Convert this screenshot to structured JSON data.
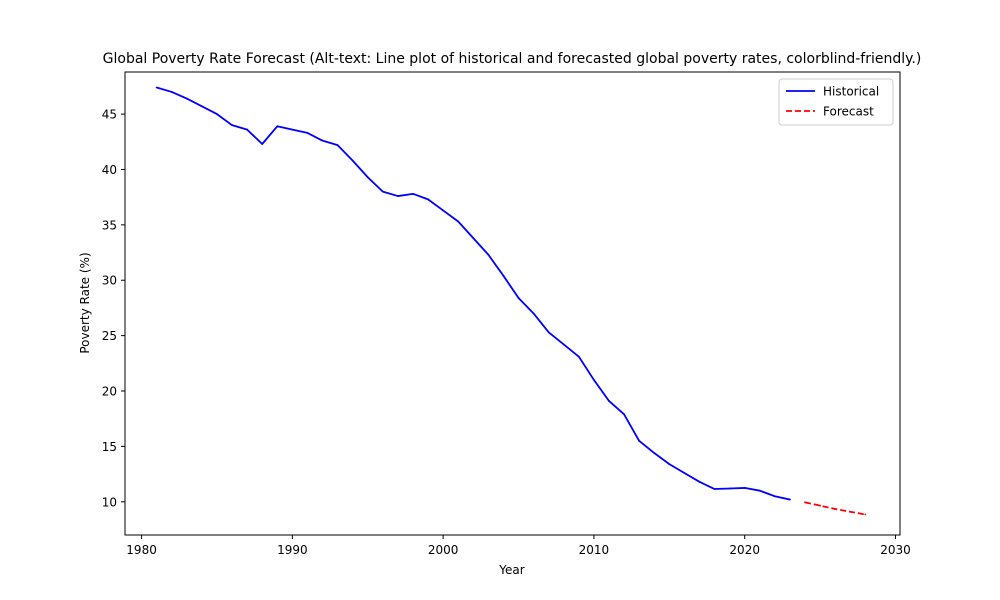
{
  "chart_data": {
    "type": "line",
    "title": "Global Poverty Rate Forecast (Alt-text: Line plot of historical and forecasted global poverty rates, colorblind-friendly.)",
    "xlabel": "Year",
    "ylabel": "Poverty Rate (%)",
    "xlim": [
      1978.9,
      2030.3
    ],
    "ylim": [
      7.0,
      48.8
    ],
    "xticks": [
      1980,
      1990,
      2000,
      2010,
      2020,
      2030
    ],
    "yticks": [
      10,
      15,
      20,
      25,
      30,
      35,
      40,
      45
    ],
    "grid": false,
    "legend_position": "top-right",
    "series": [
      {
        "name": "Historical",
        "color": "#0000ff",
        "style": "solid",
        "x": [
          1981,
          1982,
          1983,
          1984,
          1985,
          1986,
          1987,
          1988,
          1989,
          1990,
          1991,
          1992,
          1993,
          1994,
          1995,
          1996,
          1997,
          1998,
          1999,
          2000,
          2001,
          2002,
          2003,
          2004,
          2005,
          2006,
          2007,
          2008,
          2009,
          2010,
          2011,
          2012,
          2013,
          2014,
          2015,
          2016,
          2017,
          2018,
          2019,
          2020,
          2021,
          2022,
          2023
        ],
        "y": [
          47.4,
          47.0,
          46.4,
          45.7,
          45.0,
          44.0,
          43.6,
          42.3,
          43.9,
          43.6,
          43.3,
          42.6,
          42.2,
          40.8,
          39.3,
          38.0,
          37.6,
          37.8,
          37.3,
          36.3,
          35.3,
          33.8,
          32.3,
          30.4,
          28.4,
          27.0,
          25.3,
          24.2,
          23.1,
          21.0,
          19.1,
          17.9,
          15.5,
          14.4,
          13.4,
          12.6,
          11.8,
          11.15,
          11.2,
          11.25,
          11.0,
          10.5,
          10.2
        ]
      },
      {
        "name": "Forecast",
        "color": "#ff0000",
        "style": "dashed",
        "x": [
          2024,
          2025,
          2026,
          2027,
          2028
        ],
        "y": [
          9.95,
          9.65,
          9.35,
          9.1,
          8.85
        ]
      }
    ]
  }
}
